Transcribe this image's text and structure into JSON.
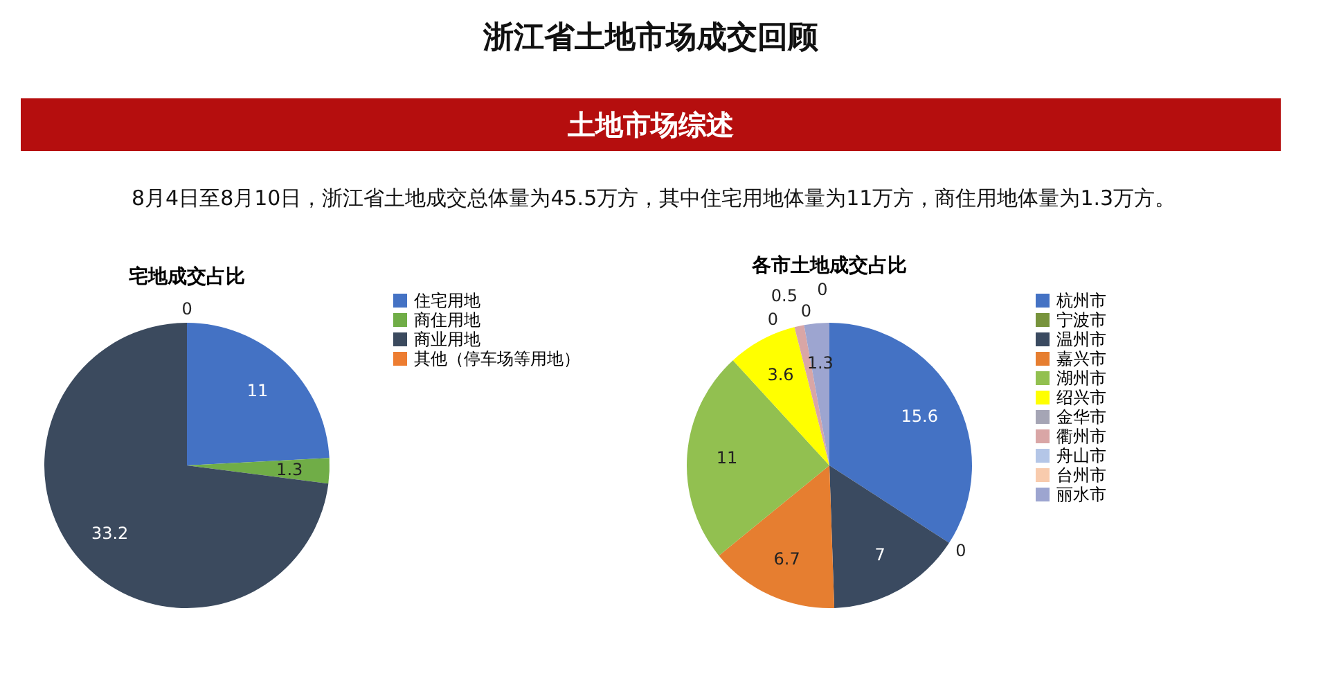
{
  "chart_data": [
    {
      "type": "other",
      "title": "浙江省土地市场成交回顾",
      "subtitle": "土地市场综述",
      "annotations": [
        "8月4日至8月10日，浙江省土地成交总体量为45.5万方，其中住宅用地体量为11万方，商住用地体量为1.3万方。"
      ]
    },
    {
      "type": "pie",
      "title": "宅地成交占比",
      "categories": [
        "住宅用地",
        "商住用地",
        "商业用地",
        "其他（停车场等用地）"
      ],
      "values": [
        11,
        1.3,
        33.2,
        0
      ],
      "colors": [
        "#4472c4",
        "#70ad47",
        "#3b4a5e",
        "#ed7d31"
      ],
      "value_labels": [
        "11",
        "1.3",
        "33.2",
        "0"
      ],
      "legend": "right"
    },
    {
      "type": "pie",
      "title": "各市土地成交占比",
      "categories": [
        "杭州市",
        "宁波市",
        "温州市",
        "嘉兴市",
        "湖州市",
        "绍兴市",
        "金华市",
        "衢州市",
        "舟山市",
        "台州市",
        "丽水市"
      ],
      "values": [
        15.6,
        0,
        7,
        6.7,
        11,
        3.6,
        0,
        0.5,
        0,
        0,
        1.3
      ],
      "colors": [
        "#4472c4",
        "#77933c",
        "#3a4a60",
        "#e67e30",
        "#92c050",
        "#ffff00",
        "#a5a5b5",
        "#d9a6a6",
        "#b4c6e7",
        "#f8cbad",
        "#9da5d0"
      ],
      "value_labels": [
        "15.6",
        "0",
        "7",
        "6.7",
        "11",
        "3.6",
        "0",
        "0.5",
        "0",
        "0",
        "1.3"
      ],
      "legend": "right"
    }
  ]
}
